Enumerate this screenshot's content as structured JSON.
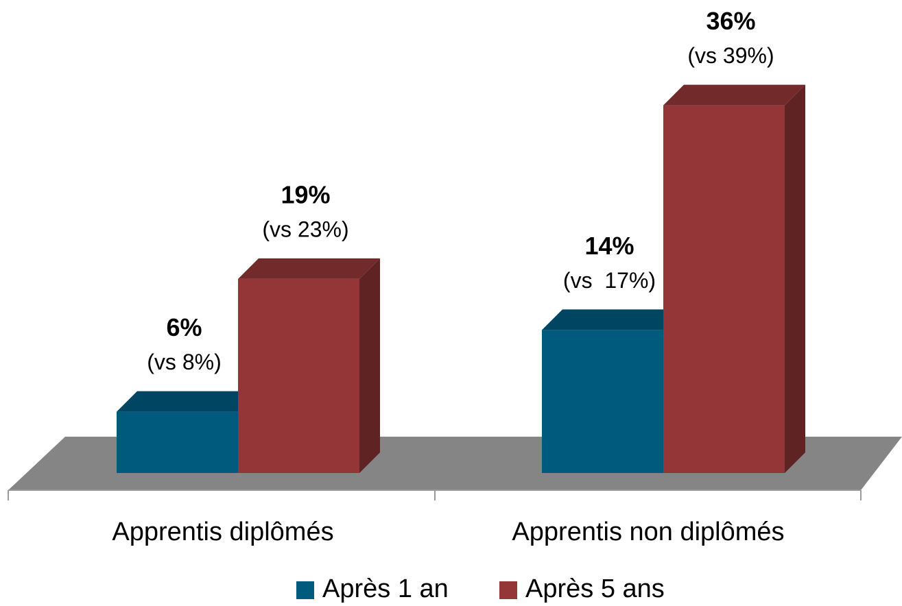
{
  "chart_data": {
    "type": "bar3d",
    "categories": [
      "Apprentis diplômés",
      "Apprentis non diplômés"
    ],
    "series": [
      {
        "name": "Après 1 an",
        "color": "#005a7e",
        "values": [
          6,
          14
        ],
        "value_labels": [
          "6%",
          "14%"
        ],
        "comparison_labels": [
          "(vs 8%)",
          "(vs  17%)"
        ]
      },
      {
        "name": "Après 5 ans",
        "color": "#943637",
        "values": [
          19,
          36
        ],
        "value_labels": [
          "19%",
          "36%"
        ],
        "comparison_labels": [
          "(vs 23%)",
          "(vs 39%)"
        ]
      }
    ]
  }
}
